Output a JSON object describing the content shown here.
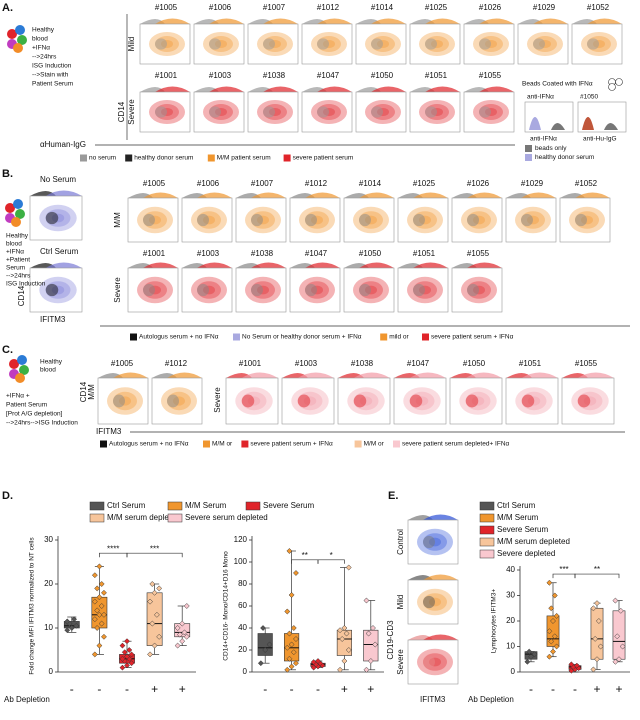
{
  "figure": {
    "panel_a": {
      "label": "A.",
      "left_text": [
        "Healthy",
        "blood",
        "+IFNα",
        "-->24hrs",
        "ISG Induction",
        "-->Stain with",
        "Patient Serum"
      ],
      "mild_label": "Mild",
      "severe_label": "Severe",
      "y_axis": "CD14",
      "x_axis": "αHuman-IgG",
      "mild_ids": [
        "#1005",
        "#1006",
        "#1007",
        "#1012",
        "#1014",
        "#1025",
        "#1026",
        "#1029",
        "#1052"
      ],
      "severe_ids": [
        "#1001",
        "#1003",
        "#1038",
        "#1047",
        "#1050",
        "#1051",
        "#1055"
      ],
      "legend": [
        {
          "label": "no serum",
          "color": "#9a9a9a"
        },
        {
          "label": "healthy donor serum",
          "color": "#222222"
        },
        {
          "label": "M/M patient serum",
          "color": "#f0962e"
        },
        {
          "label": "severe patient serum",
          "color": "#e0242a"
        }
      ],
      "beads": {
        "title": "Beads Coated with IFNα",
        "top_left": "anti-IFNα",
        "top_right": {
          "label": "#1050",
          "color": "#e0242a"
        },
        "bottom_left": "anti-IFNα",
        "bottom_right": "anti-Hu-IgG",
        "legend": [
          {
            "label": "beads only",
            "color": "#777777"
          },
          {
            "label": "healthy donor serum",
            "color": "#a9a9e0"
          }
        ]
      }
    },
    "panel_b": {
      "label": "B.",
      "left_text": [
        "Healthy",
        "blood",
        "+IFNα",
        "+Patient",
        "Serum",
        "-->24hrs",
        "ISG Induction"
      ],
      "no_serum": "No Serum",
      "ctrl_serum": "Ctrl Serum",
      "y_axis": "CD14",
      "x_axis": "IFITM3",
      "mm_label": "M/M",
      "severe_label": "Severe",
      "mm_ids": [
        "#1005",
        "#1006",
        "#1007",
        "#1012",
        "#1014",
        "#1025",
        "#1026",
        "#1029",
        "#1052"
      ],
      "severe_ids": [
        "#1001",
        "#1003",
        "#1038",
        "#1047",
        {
          "label": "#1050",
          "color": "#e0242a"
        },
        "#1051",
        "#1055"
      ],
      "legend": [
        {
          "label": "Autologus serum + no IFNα",
          "color": "#111111"
        },
        {
          "label": "No Serum or healthy donor serum + IFNα",
          "color": "#a9a9e0"
        },
        {
          "label": "mild or",
          "color": "#f0962e"
        },
        {
          "label": "severe  patient serum + IFNα",
          "color": "#e0242a"
        }
      ]
    },
    "panel_c": {
      "label": "C.",
      "left_text": [
        "Healthy",
        "blood",
        "+IFNα +",
        "Patient Serum",
        "[Prot A/G depletion]",
        "-->24hrs-->ISG Induction"
      ],
      "y_axis": "CD14",
      "mm_label": "M/M",
      "severe_label": "Severe",
      "x_axis": "IFITM3",
      "mm_ids": [
        "#1005",
        "#1012"
      ],
      "severe_ids": [
        "#1001",
        "#1003",
        "#1038",
        "#1047",
        {
          "label": "#1050",
          "color": "#e0242a"
        },
        "#1051",
        "#1055"
      ],
      "legend": [
        {
          "label": "Autologus serum + no IFNα",
          "color": "#111111"
        },
        {
          "label": "M/M or",
          "color": "#f0962e"
        },
        {
          "label": "severe  patient serum + IFNα",
          "color": "#e0242a"
        },
        {
          "label": "M/M or",
          "color": "#f7c59b"
        },
        {
          "label": "severe  patient serum depleted+ IFNα",
          "color": "#f9c8cf"
        }
      ]
    },
    "panel_d": {
      "label": "D."
    },
    "panel_e": {
      "label": "E.",
      "rows": [
        "Control",
        "Mild",
        "Severe"
      ],
      "y_axis": "CD19-CD3",
      "x_axis": "IFITM3"
    }
  },
  "chart_data": [
    {
      "type": "box",
      "ylabel": "Fold change MFI IFITM3 normalized to NT cells",
      "ylim": [
        0,
        30
      ],
      "yticks": [
        0,
        10,
        20,
        30
      ],
      "categories": [
        "-",
        "-",
        "-",
        "+",
        "+"
      ],
      "row_label": "Ab Depletion",
      "annotations": [
        "****",
        "***"
      ],
      "series": [
        {
          "name": "Ctrl Serum",
          "color": "#555555",
          "min": 9,
          "q1": 10,
          "median": 10.5,
          "q3": 11.5,
          "max": 12.5,
          "points": [
            9.5,
            10,
            10.5,
            11,
            12,
            11.5
          ]
        },
        {
          "name": "M/M Serum",
          "color": "#f0962e",
          "min": 4,
          "q1": 10,
          "median": 13,
          "q3": 17,
          "max": 24,
          "points": [
            4,
            6,
            8,
            10,
            11,
            12,
            13,
            13,
            14,
            15,
            16,
            17,
            18,
            19,
            20,
            22,
            24
          ]
        },
        {
          "name": "Severe Serum",
          "color": "#e0242a",
          "min": 1,
          "q1": 2,
          "median": 3,
          "q3": 4,
          "max": 7,
          "points": [
            1,
            1.5,
            2,
            2.5,
            3,
            3,
            3.5,
            4,
            4.5,
            5,
            6,
            7
          ]
        },
        {
          "name": "M/M serum depleted",
          "color": "#f7c59b",
          "min": 4,
          "q1": 6,
          "median": 11,
          "q3": 18,
          "max": 20,
          "points": [
            4,
            6,
            8,
            11,
            13,
            16,
            18,
            19,
            20
          ]
        },
        {
          "name": "Severe serum depleted",
          "color": "#f9c8cf",
          "min": 6,
          "q1": 8,
          "median": 9,
          "q3": 11,
          "max": 15,
          "points": [
            6,
            7,
            8,
            8.5,
            9,
            10,
            11,
            15
          ]
        }
      ]
    },
    {
      "type": "box",
      "ylabel": "CD14+CD16- Mono/CD14+D16 Mono",
      "ylim": [
        0,
        120
      ],
      "yticks": [
        0,
        20,
        40,
        60,
        80,
        100,
        120
      ],
      "categories": [
        "-",
        "-",
        "-",
        "+",
        "+"
      ],
      "annotations": [
        "**",
        "*"
      ],
      "series": [
        {
          "color": "#555555",
          "min": 8,
          "q1": 15,
          "median": 22,
          "q3": 35,
          "max": 40,
          "points": [
            8,
            20,
            25,
            40
          ]
        },
        {
          "color": "#f0962e",
          "min": 2,
          "q1": 10,
          "median": 22,
          "q3": 35,
          "max": 110,
          "points": [
            2,
            5,
            8,
            12,
            18,
            22,
            25,
            30,
            35,
            40,
            55,
            70,
            90,
            110
          ]
        },
        {
          "color": "#e0242a",
          "min": 4,
          "q1": 5,
          "median": 7,
          "q3": 8,
          "max": 10,
          "points": [
            4,
            5,
            6,
            7,
            8,
            9,
            10
          ]
        },
        {
          "color": "#f7c59b",
          "min": 2,
          "q1": 15,
          "median": 30,
          "q3": 38,
          "max": 95,
          "points": [
            2,
            10,
            20,
            30,
            35,
            38,
            40,
            95
          ]
        },
        {
          "color": "#f9c8cf",
          "min": 2,
          "q1": 10,
          "median": 25,
          "q3": 38,
          "max": 65,
          "points": [
            2,
            10,
            25,
            35,
            40,
            65
          ]
        }
      ]
    },
    {
      "type": "box",
      "ylabel": "Lymphocytes IFITM3+",
      "ylim": [
        0,
        40
      ],
      "yticks": [
        0,
        10,
        20,
        30,
        40
      ],
      "categories": [
        "-",
        "-",
        "-",
        "+",
        "+"
      ],
      "row_label": "Ab Depletion",
      "annotations": [
        "***",
        "**"
      ],
      "series": [
        {
          "name": "Ctrl Serum",
          "color": "#555555",
          "min": 4,
          "q1": 5,
          "median": 7,
          "q3": 8,
          "max": 8,
          "points": [
            4,
            6,
            7,
            8
          ]
        },
        {
          "name": "M/M Serum",
          "color": "#f0962e",
          "min": 6,
          "q1": 10,
          "median": 13,
          "q3": 22,
          "max": 35,
          "points": [
            6,
            8,
            10,
            12,
            14,
            16,
            20,
            22,
            25,
            30,
            35
          ]
        },
        {
          "name": "Severe Serum",
          "color": "#e0242a",
          "min": 0,
          "q1": 1,
          "median": 2,
          "q3": 2.5,
          "max": 3,
          "points": [
            0.5,
            1,
            1.5,
            2,
            2.5,
            3
          ]
        },
        {
          "name": "M/M serum depleted",
          "color": "#f7c59b",
          "min": 1,
          "q1": 5,
          "median": 13,
          "q3": 25,
          "max": 27,
          "points": [
            1,
            5,
            10,
            13,
            20,
            25,
            27
          ]
        },
        {
          "name": "Severe depleted",
          "color": "#f9c8cf",
          "min": 4,
          "q1": 5,
          "median": 12,
          "q3": 24,
          "max": 28,
          "points": [
            4,
            5,
            10,
            14,
            24,
            28
          ]
        }
      ]
    }
  ]
}
